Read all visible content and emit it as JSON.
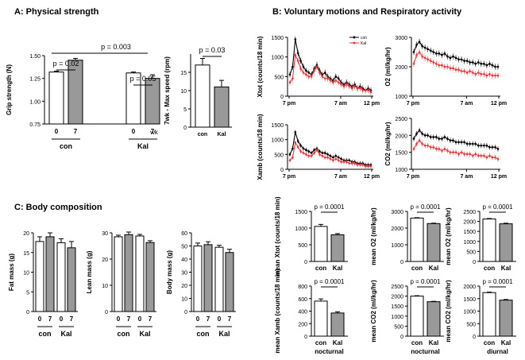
{
  "panels": {
    "a_title": "A: Physical strength",
    "b_title": "B: Voluntary motions and Respiratory activity",
    "c_title": "C: Body composition"
  },
  "common": {
    "group_con": "con",
    "group_kal": "Kal",
    "week0": "0",
    "week7": "7",
    "wk": "wk",
    "x_7pm": "7 pm",
    "x_7am": "7 am",
    "x_12pm": "12 pm",
    "nocturnal": "nocturnal",
    "diurnal": "diurnal"
  },
  "chart_data": [
    {
      "id": "grip",
      "type": "bar",
      "ylabel": "Grip strength (N)",
      "ylim": [
        0.75,
        1.5
      ],
      "ticks": [
        "0.75",
        "1.00",
        "1.25",
        "1.50"
      ],
      "series": [
        {
          "name": "con 0 wk",
          "value": 1.32,
          "err": 0.01,
          "fill": "#ffffff"
        },
        {
          "name": "con 7 wk",
          "value": 1.45,
          "err": 0.02,
          "fill": "#999999"
        },
        {
          "name": "Kal 0 wk",
          "value": 1.31,
          "err": 0.01,
          "fill": "#ffffff"
        },
        {
          "name": "Kal 7 wk",
          "value": 1.25,
          "err": 0.04,
          "fill": "#999999"
        }
      ],
      "annotations": [
        "p = 0.02",
        "p = 0.003",
        "p = 0.05"
      ]
    },
    {
      "id": "speed",
      "type": "bar",
      "ylabel": "7wk - Max speed (rpm)",
      "ylim": [
        0,
        20
      ],
      "ticks": [
        "0",
        "5",
        "10",
        "15"
      ],
      "series": [
        {
          "name": "con",
          "value": 17,
          "err": 1.8,
          "fill": "#ffffff"
        },
        {
          "name": "Kal",
          "value": 11,
          "err": 1.8,
          "fill": "#999999"
        }
      ],
      "annotations": [
        "p = 0.03"
      ]
    },
    {
      "id": "xtot_time",
      "type": "line",
      "ylabel": "Xtot (counts/18 min)",
      "ylim": [
        0,
        1500
      ],
      "ticks": [
        "0",
        "500",
        "1000",
        "1500"
      ],
      "legend": [
        "con",
        "Kal"
      ],
      "series": [
        {
          "name": "con",
          "color": "#000000",
          "values": [
            550,
            750,
            1450,
            1100,
            900,
            750,
            650,
            600,
            550,
            700,
            800,
            650,
            550,
            600,
            500,
            450,
            400,
            500,
            450,
            350,
            300,
            350,
            300,
            250,
            300,
            200,
            250,
            200,
            150,
            200,
            150
          ]
        },
        {
          "name": "Kal",
          "color": "#e8383d",
          "values": [
            350,
            450,
            1050,
            900,
            700,
            600,
            550,
            500,
            500,
            650,
            750,
            600,
            500,
            450,
            450,
            400,
            350,
            400,
            350,
            300,
            250,
            300,
            250,
            200,
            250,
            200,
            200,
            150,
            150,
            150,
            100
          ]
        }
      ]
    },
    {
      "id": "o2_time",
      "type": "line",
      "ylabel": "O2 (ml/kg/hr)",
      "ylim": [
        1000,
        3000
      ],
      "ticks": [
        "1000",
        "2000",
        "3000"
      ],
      "series": [
        {
          "name": "con",
          "color": "#000000",
          "values": [
            2500,
            2750,
            2850,
            2700,
            2650,
            2600,
            2550,
            2500,
            2450,
            2450,
            2400,
            2450,
            2350,
            2300,
            2350,
            2300,
            2250,
            2250,
            2200,
            2200,
            2150,
            2150,
            2100,
            2150,
            2100,
            2100,
            2050,
            2100,
            2050,
            2000,
            2000
          ]
        },
        {
          "name": "Kal",
          "color": "#e8383d",
          "values": [
            2100,
            2400,
            2500,
            2350,
            2300,
            2250,
            2200,
            2150,
            2100,
            2050,
            2050,
            2000,
            2000,
            1950,
            1950,
            1900,
            1900,
            1850,
            1850,
            1800,
            1850,
            1800,
            1750,
            1800,
            1750,
            1750,
            1700,
            1750,
            1700,
            1700,
            1700
          ]
        }
      ]
    },
    {
      "id": "xamb_time",
      "type": "line",
      "ylabel": "Xamb (counts/18 min)",
      "ylim": [
        0,
        1500
      ],
      "ticks": [
        "0",
        "500",
        "1000",
        "1500"
      ],
      "series": [
        {
          "name": "con",
          "color": "#000000",
          "values": [
            500,
            700,
            1250,
            950,
            800,
            700,
            650,
            600,
            550,
            650,
            700,
            600,
            550,
            550,
            500,
            450,
            400,
            450,
            400,
            350,
            300,
            300,
            300,
            250,
            250,
            200,
            200,
            200,
            150,
            150,
            150
          ]
        },
        {
          "name": "Kal",
          "color": "#e8383d",
          "values": [
            300,
            400,
            900,
            750,
            600,
            550,
            500,
            450,
            450,
            550,
            650,
            500,
            450,
            400,
            400,
            350,
            300,
            350,
            300,
            250,
            250,
            250,
            200,
            200,
            200,
            150,
            150,
            150,
            100,
            100,
            100
          ]
        }
      ]
    },
    {
      "id": "co2_time",
      "type": "line",
      "ylabel": "CO2 (ml/kg/hr)",
      "ylim": [
        1000,
        2500
      ],
      "ticks": [
        "1000",
        "1500",
        "2000",
        "2500"
      ],
      "series": [
        {
          "name": "con",
          "color": "#000000",
          "values": [
            1900,
            2050,
            2150,
            2050,
            2000,
            2000,
            1950,
            1950,
            1950,
            1900,
            1900,
            1950,
            1900,
            1850,
            1850,
            1800,
            1800,
            1800,
            1800,
            1750,
            1750,
            1750,
            1750,
            1700,
            1700,
            1700,
            1700,
            1650,
            1650,
            1650,
            1600
          ]
        },
        {
          "name": "Kal",
          "color": "#e8383d",
          "values": [
            1600,
            1750,
            1850,
            1750,
            1700,
            1700,
            1650,
            1650,
            1600,
            1600,
            1550,
            1600,
            1550,
            1500,
            1500,
            1500,
            1450,
            1500,
            1450,
            1450,
            1450,
            1400,
            1450,
            1400,
            1400,
            1400,
            1350,
            1400,
            1350,
            1350,
            1300
          ]
        }
      ]
    },
    {
      "id": "fat",
      "type": "bar",
      "ylabel": "Fat mass (g)",
      "ylim": [
        0,
        20
      ],
      "ticks": [
        "0",
        "5",
        "10",
        "15",
        "20"
      ],
      "series": [
        {
          "name": "con 0",
          "value": 17.8,
          "err": 1.2,
          "fill": "#ffffff"
        },
        {
          "name": "con 7",
          "value": 19.0,
          "err": 1.0,
          "fill": "#999999"
        },
        {
          "name": "Kal 0",
          "value": 17.5,
          "err": 1.0,
          "fill": "#ffffff"
        },
        {
          "name": "Kal 7",
          "value": 16.2,
          "err": 1.6,
          "fill": "#999999"
        }
      ]
    },
    {
      "id": "lean",
      "type": "bar",
      "ylabel": "Lean mass (g)",
      "ylim": [
        0,
        30
      ],
      "ticks": [
        "0",
        "10",
        "20",
        "30"
      ],
      "series": [
        {
          "name": "con 0",
          "value": 28.5,
          "err": 0.6,
          "fill": "#ffffff"
        },
        {
          "name": "con 7",
          "value": 29.3,
          "err": 1.0,
          "fill": "#999999"
        },
        {
          "name": "Kal 0",
          "value": 28.8,
          "err": 0.6,
          "fill": "#ffffff"
        },
        {
          "name": "Kal 7",
          "value": 26.3,
          "err": 0.7,
          "fill": "#999999"
        }
      ]
    },
    {
      "id": "body",
      "type": "bar",
      "ylabel": "Body mass (g)",
      "ylim": [
        0,
        60
      ],
      "ticks": [
        "0",
        "10",
        "20",
        "30",
        "40",
        "50",
        "60"
      ],
      "series": [
        {
          "name": "con 0",
          "value": 50,
          "err": 2.2,
          "fill": "#ffffff"
        },
        {
          "name": "con 7",
          "value": 51,
          "err": 2.2,
          "fill": "#999999"
        },
        {
          "name": "Kal 0",
          "value": 49,
          "err": 1.5,
          "fill": "#ffffff"
        },
        {
          "name": "Kal 7",
          "value": 45,
          "err": 2.5,
          "fill": "#999999"
        }
      ]
    },
    {
      "id": "mxtot",
      "type": "bar",
      "ylabel": "mean Xtot (counts/18 min)",
      "ylim": [
        0,
        1500
      ],
      "ticks": [
        "0",
        "500",
        "1000",
        "1500"
      ],
      "series": [
        {
          "name": "con",
          "value": 1050,
          "err": 60,
          "fill": "#ffffff"
        },
        {
          "name": "Kal",
          "value": 800,
          "err": 35,
          "fill": "#999999"
        }
      ],
      "annotations": [
        "p = 0.0001"
      ]
    },
    {
      "id": "mxamb",
      "type": "bar",
      "ylabel": "mean Xamb (counts/18 min)",
      "ylim": [
        0,
        800
      ],
      "ticks": [
        "0",
        "200",
        "400",
        "600",
        "800"
      ],
      "series": [
        {
          "name": "con",
          "value": 560,
          "err": 35,
          "fill": "#ffffff"
        },
        {
          "name": "Kal",
          "value": 370,
          "err": 20,
          "fill": "#999999"
        }
      ],
      "annotations": [
        "p = 0.0001"
      ]
    },
    {
      "id": "mo2n",
      "type": "bar",
      "ylabel": "mean O2 (ml/kg/hr)",
      "ylim": [
        0,
        3000
      ],
      "ticks": [
        "0",
        "1000",
        "2000",
        "3000"
      ],
      "series": [
        {
          "name": "con",
          "value": 2600,
          "err": 25,
          "fill": "#ffffff"
        },
        {
          "name": "Kal",
          "value": 2270,
          "err": 25,
          "fill": "#999999"
        }
      ],
      "annotations": [
        "p = 0.0001"
      ]
    },
    {
      "id": "mco2n",
      "type": "bar",
      "ylabel": "mean CO2 (ml/kg/hr)",
      "ylim": [
        0,
        2500
      ],
      "ticks": [
        "0",
        "500",
        "1000",
        "1500",
        "2000",
        "2500"
      ],
      "series": [
        {
          "name": "con",
          "value": 2000,
          "err": 20,
          "fill": "#ffffff"
        },
        {
          "name": "Kal",
          "value": 1720,
          "err": 20,
          "fill": "#999999"
        }
      ],
      "annotations": [
        "p = 0.0001"
      ]
    },
    {
      "id": "mo2d",
      "type": "bar",
      "ylabel": "mean O2 (ml/kg/hr)",
      "ylim": [
        0,
        2500
      ],
      "ticks": [
        "0",
        "500",
        "1000",
        "1500",
        "2000",
        "2500"
      ],
      "series": [
        {
          "name": "con",
          "value": 2120,
          "err": 25,
          "fill": "#ffffff"
        },
        {
          "name": "Kal",
          "value": 1880,
          "err": 30,
          "fill": "#999999"
        }
      ],
      "annotations": [
        "p = 0.0001"
      ]
    },
    {
      "id": "mco2d",
      "type": "bar",
      "ylabel": "mean CO2 (ml/kg/hr)",
      "ylim": [
        0,
        2000
      ],
      "ticks": [
        "0",
        "500",
        "1000",
        "1500",
        "2000"
      ],
      "series": [
        {
          "name": "con",
          "value": 1740,
          "err": 20,
          "fill": "#ffffff"
        },
        {
          "name": "Kal",
          "value": 1440,
          "err": 25,
          "fill": "#999999"
        }
      ],
      "annotations": [
        "p = 0.0001"
      ]
    }
  ]
}
